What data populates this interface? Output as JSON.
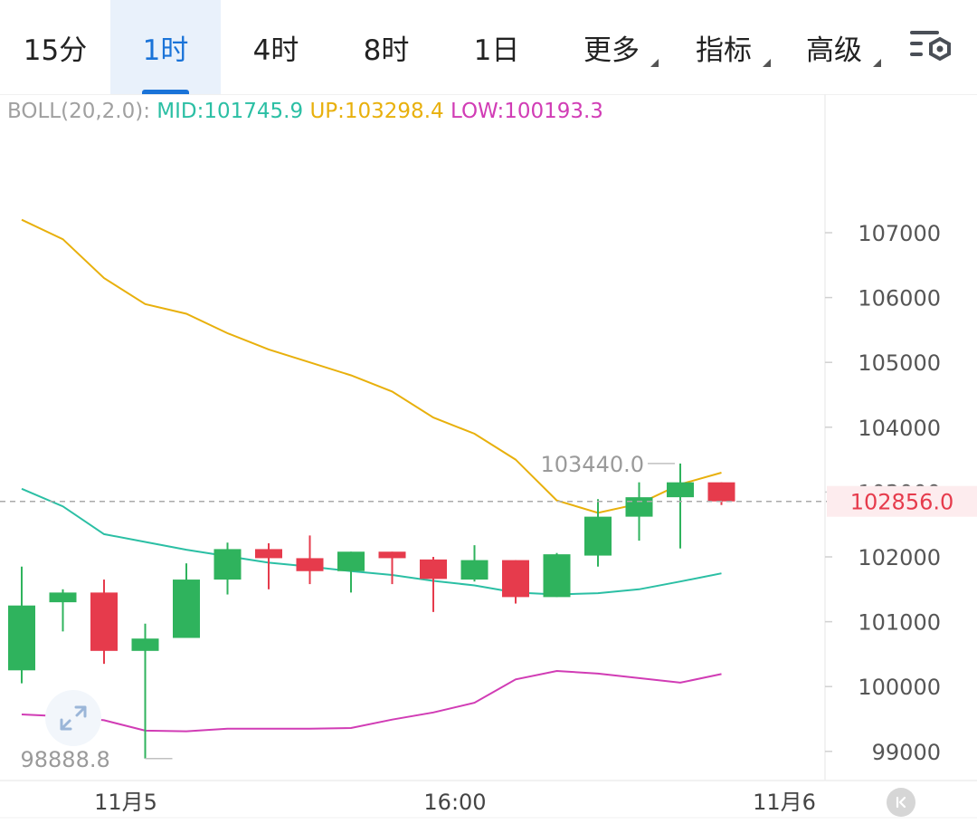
{
  "tabs": [
    {
      "label": "15分",
      "active": false,
      "dropdown": false
    },
    {
      "label": "1时",
      "active": true,
      "dropdown": false
    },
    {
      "label": "4时",
      "active": false,
      "dropdown": false
    },
    {
      "label": "8时",
      "active": false,
      "dropdown": false
    },
    {
      "label": "1日",
      "active": false,
      "dropdown": false
    },
    {
      "label": "更多",
      "active": false,
      "dropdown": true
    },
    {
      "label": "指标",
      "active": false,
      "dropdown": true
    },
    {
      "label": "高级",
      "active": false,
      "dropdown": true
    }
  ],
  "settings_icon": "chart-settings-icon",
  "indicator": {
    "label": "BOLL(20,2.0):",
    "mid": "MID:101745.9",
    "up": "UP:103298.4",
    "low": "LOW:100193.3"
  },
  "colors": {
    "up_candle": "#2fb35d",
    "down_candle": "#e63b4c",
    "mid": "#2bbfa4",
    "upper": "#e8b00c",
    "lower": "#d13cb5",
    "active_tab": "#1a73d8",
    "price_line": "#e63b4c"
  },
  "chart_data": {
    "type": "candlestick",
    "indicator": "BOLL(20,2.0)",
    "y_ticks": [
      99000,
      100000,
      101000,
      102000,
      103000,
      104000,
      105000,
      106000,
      107000
    ],
    "y_tick_labels": [
      "99000",
      "100000",
      "101000",
      "102000",
      "103000",
      "104000",
      "105000",
      "106000",
      "107000"
    ],
    "ylim": [
      98600,
      108400
    ],
    "x_ticks": [
      {
        "label": "11月5",
        "index": 2
      },
      {
        "label": "16:00",
        "index": 10
      },
      {
        "label": "11月6",
        "index": 18
      }
    ],
    "candles": [
      {
        "open": 100250,
        "high": 101850,
        "low": 100050,
        "close": 101250
      },
      {
        "open": 101300,
        "high": 101500,
        "low": 100850,
        "close": 101450
      },
      {
        "open": 101450,
        "high": 101650,
        "low": 100350,
        "close": 100550
      },
      {
        "open": 100550,
        "high": 100970,
        "low": 98888.8,
        "close": 100740
      },
      {
        "open": 100750,
        "high": 101900,
        "low": 100750,
        "close": 101650
      },
      {
        "open": 101650,
        "high": 102220,
        "low": 101420,
        "close": 102120
      },
      {
        "open": 102120,
        "high": 102210,
        "low": 101500,
        "close": 101980
      },
      {
        "open": 101980,
        "high": 102330,
        "low": 101580,
        "close": 101780
      },
      {
        "open": 101780,
        "high": 102080,
        "low": 101450,
        "close": 102080
      },
      {
        "open": 102080,
        "high": 102080,
        "low": 101580,
        "close": 101980
      },
      {
        "open": 101960,
        "high": 102000,
        "low": 101150,
        "close": 101660
      },
      {
        "open": 101650,
        "high": 102180,
        "low": 101620,
        "close": 101950
      },
      {
        "open": 101950,
        "high": 101950,
        "low": 101280,
        "close": 101380
      },
      {
        "open": 101380,
        "high": 102060,
        "low": 101380,
        "close": 102040
      },
      {
        "open": 102020,
        "high": 102890,
        "low": 101850,
        "close": 102620
      },
      {
        "open": 102620,
        "high": 103150,
        "low": 102250,
        "close": 102920
      },
      {
        "open": 102920,
        "high": 103440,
        "low": 102130,
        "close": 103150
      },
      {
        "open": 103150,
        "high": 103150,
        "low": 102800,
        "close": 102856
      }
    ],
    "boll_upper": [
      107200,
      106900,
      106300,
      105900,
      105750,
      105450,
      105200,
      105000,
      104800,
      104550,
      104150,
      103900,
      103500,
      102870,
      102680,
      102820,
      103120,
      103298.4
    ],
    "boll_mid": [
      103050,
      102780,
      102350,
      102230,
      102110,
      102010,
      101910,
      101850,
      101780,
      101720,
      101630,
      101560,
      101450,
      101420,
      101440,
      101500,
      101620,
      101745.9
    ],
    "boll_lower": [
      99570,
      99540,
      99480,
      99320,
      99310,
      99350,
      99350,
      99350,
      99360,
      99490,
      99600,
      99750,
      100110,
      100240,
      100200,
      100130,
      100060,
      100193.3
    ],
    "current_price": 102856.0,
    "current_price_label": "102856.0",
    "high_marker": {
      "value": 103440.0,
      "label": "103440.0",
      "index": 16
    },
    "low_marker": {
      "value": 98888.8,
      "label": "98888.8",
      "index": 3
    }
  }
}
